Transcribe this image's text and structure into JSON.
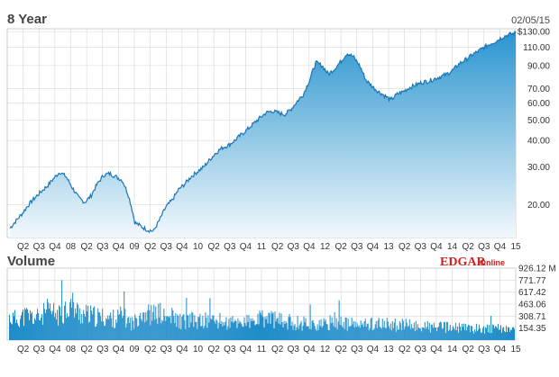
{
  "chart_data": [
    {
      "type": "area",
      "title": "8 Year",
      "date_label": "02/05/15",
      "y_scale": "log",
      "ylim": [
        14,
        134
      ],
      "y_ticks": [
        {
          "value": 130,
          "label": "$130.00"
        },
        {
          "value": 110,
          "label": "110.00"
        },
        {
          "value": 90,
          "label": "90.00"
        },
        {
          "value": 70,
          "label": "70.00"
        },
        {
          "value": 60,
          "label": "60.00"
        },
        {
          "value": 50,
          "label": "50.00"
        },
        {
          "value": 40,
          "label": "40.00"
        },
        {
          "value": 30,
          "label": "30.00"
        },
        {
          "value": 20,
          "label": "20.00"
        }
      ],
      "x_tick_labels": [
        "Q2",
        "Q3",
        "Q4",
        "08",
        "Q2",
        "Q3",
        "Q4",
        "09",
        "Q2",
        "Q3",
        "Q4",
        "10",
        "Q2",
        "Q3",
        "Q4",
        "11",
        "Q2",
        "Q3",
        "Q4",
        "12",
        "Q2",
        "Q3",
        "Q4",
        "13",
        "Q2",
        "Q3",
        "Q4",
        "14",
        "Q2",
        "Q3",
        "Q4",
        "15"
      ],
      "series": [
        {
          "values": [
            15.5,
            16.8,
            18.2,
            20,
            21.5,
            23,
            24.5,
            26.5,
            28.5,
            27,
            24,
            21.5,
            20.5,
            22,
            25,
            27.5,
            28,
            27,
            26,
            22,
            16.5,
            15.8,
            15.2,
            15,
            17,
            19.5,
            21,
            23.5,
            25,
            27,
            28.5,
            30,
            32.5,
            35,
            37,
            38,
            40,
            42.5,
            45,
            48,
            51,
            54,
            55,
            54,
            53,
            56,
            61,
            66,
            77,
            93,
            90,
            82,
            87,
            94,
            103,
            99,
            90,
            77,
            72,
            68,
            65,
            62,
            66,
            68,
            71,
            73,
            75,
            76,
            78,
            80,
            82,
            86,
            92,
            96,
            101,
            105,
            110,
            114,
            118,
            123,
            126,
            128
          ]
        }
      ],
      "grid": true
    },
    {
      "type": "bar",
      "title": "Volume",
      "y_ticks": [
        "926.12 M",
        "771.77",
        "617.42",
        "463.06",
        "308.71",
        "154.35"
      ],
      "ylim": [
        0,
        926.12
      ],
      "x_tick_labels": [
        "Q2",
        "Q3",
        "Q4",
        "08",
        "Q2",
        "Q3",
        "Q4",
        "09",
        "Q2",
        "Q3",
        "Q4",
        "10",
        "Q2",
        "Q3",
        "Q4",
        "11",
        "Q2",
        "Q3",
        "Q4",
        "12",
        "Q2",
        "Q3",
        "Q4",
        "13",
        "Q2",
        "Q3",
        "Q4",
        "14",
        "Q2",
        "Q3",
        "Q4",
        "15"
      ],
      "values": [
        350,
        330,
        360,
        390,
        340,
        360,
        450,
        420,
        380,
        500,
        560,
        430,
        400,
        380,
        360,
        350,
        340,
        330,
        380,
        300,
        260,
        460,
        420,
        380,
        430,
        330,
        360,
        310,
        290,
        320,
        280,
        300,
        300,
        300,
        290,
        260,
        270,
        280,
        290,
        260,
        320,
        330,
        350,
        300,
        290,
        280,
        270,
        270,
        260,
        240,
        230,
        240,
        320,
        280,
        250,
        240,
        230,
        240,
        260,
        250,
        240,
        240,
        240,
        230,
        230,
        220,
        210,
        210,
        200,
        200,
        200,
        190,
        190,
        190,
        180,
        180,
        185,
        175,
        170,
        180,
        175,
        170
      ]
    }
  ],
  "watermark": {
    "brand_main": "EDGAR",
    "brand_suffix": "Online"
  },
  "colors": {
    "area_top": "#2a95cf",
    "area_bottom": "#f2f8fc",
    "line": "#1b76b6",
    "volume_bar": "#1f8cc9",
    "grid": "#d6d6d6",
    "brand": "#d21f1f"
  }
}
